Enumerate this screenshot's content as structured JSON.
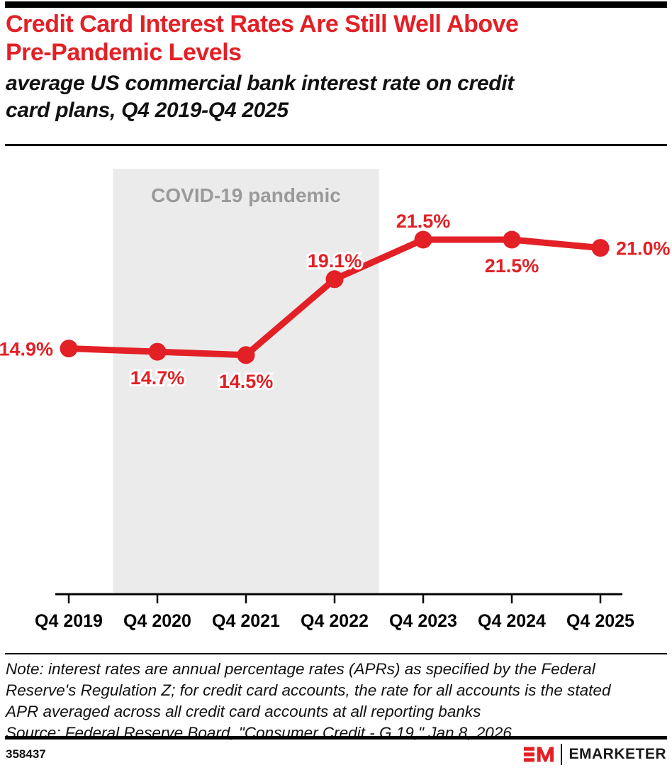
{
  "colors": {
    "accent": "#e22026",
    "band": "#ebebeb",
    "band_text": "#9a9a9a",
    "ink": "#111111"
  },
  "header": {
    "title": "Credit Card Interest Rates Are Still Well Above Pre-Pandemic Levels",
    "title_lines": [
      "Credit Card Interest Rates Are Still Well Above",
      "Pre-Pandemic Levels"
    ],
    "subtitle": "average US commercial bank interest rate on credit card plans, Q4 2019-Q4 2025",
    "subtitle_lines": [
      "average US commercial bank interest rate on credit",
      "card plans, Q4 2019-Q4 2025"
    ]
  },
  "chart_data": {
    "type": "line",
    "title": "Credit Card Interest Rates Are Still Well Above Pre-Pandemic Levels",
    "subtitle": "average US commercial bank interest rate on credit card plans, Q4 2019-Q4 2025",
    "categories": [
      "Q4 2019",
      "Q4 2020",
      "Q4 2021",
      "Q4 2022",
      "Q4 2023",
      "Q4 2024",
      "Q4 2025"
    ],
    "values": [
      14.9,
      14.7,
      14.5,
      19.1,
      21.5,
      21.5,
      21.0
    ],
    "data_labels": [
      "14.9%",
      "14.7%",
      "14.5%",
      "19.1%",
      "21.5%",
      "21.5%",
      "21.0%"
    ],
    "data_label_positions": [
      "left",
      "below",
      "below",
      "above",
      "above",
      "below",
      "right"
    ],
    "unit": "%",
    "xlabel": "",
    "ylabel": "",
    "ylim": [
      0,
      25.8
    ],
    "grid": false,
    "legend": "none",
    "annotation_band": {
      "label": "COVID-19 pandemic",
      "from_category": "Q4 2020",
      "to_category": "Q4 2022"
    }
  },
  "note": {
    "note_lines": [
      "Note: interest rates are annual percentage rates (APRs) as specified by the Federal",
      "Reserve's Regulation Z; for credit card accounts, the rate for all accounts is the stated",
      "APR averaged across all credit card accounts at all reporting banks"
    ],
    "source_line": "Source: Federal Reserve Board, \"Consumer Credit - G.19,\" Jan 8, 2026"
  },
  "footer": {
    "chart_id": "358437",
    "brand": "EMARKETER"
  }
}
